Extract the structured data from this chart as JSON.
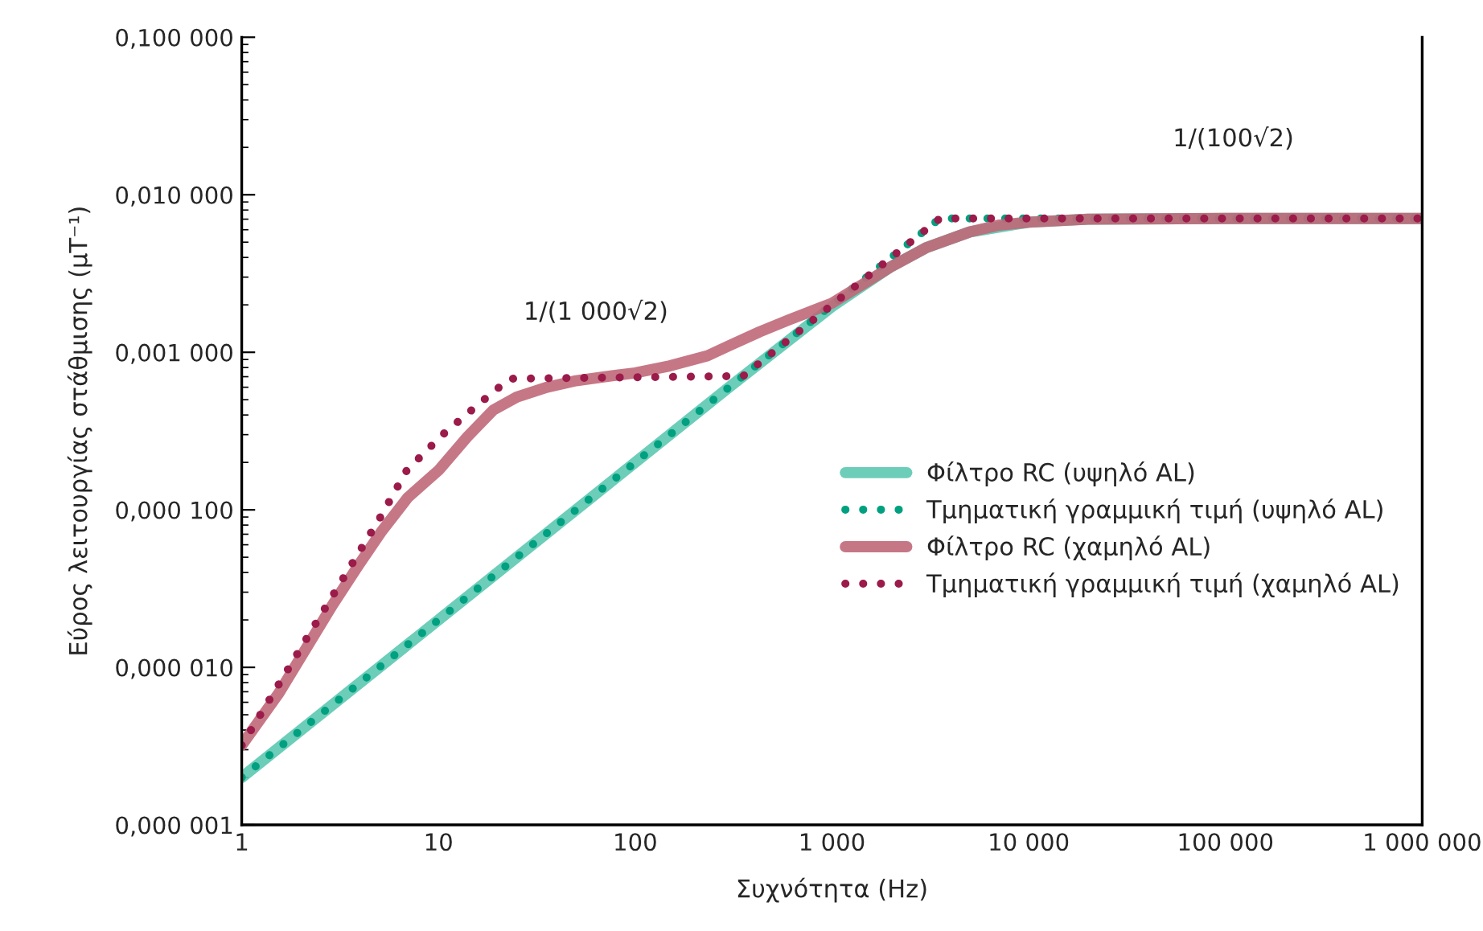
{
  "chart_data": {
    "type": "line",
    "xlabel": "Συχνότητα (Hz)",
    "ylabel": "Εύρος λειτουργίας στάθμισης (μT⁻¹)",
    "log": "xy",
    "grid": false,
    "legend": "center right",
    "marker": "none",
    "xlim": [
      1,
      1000000
    ],
    "ylim": [
      1e-06,
      0.1
    ],
    "xticks": [
      1,
      10,
      100,
      {
        "value": 1000,
        "label": "1 000"
      },
      {
        "value": 10000,
        "label": "10 000"
      },
      {
        "value": 100000,
        "label": "100 000"
      },
      {
        "value": 1000000,
        "label": "1 000 000"
      }
    ],
    "yticks": [
      {
        "value": 1e-06,
        "label": "0,000 001"
      },
      {
        "value": 1e-05,
        "label": "0,000 010"
      },
      {
        "value": 0.0001,
        "label": "0,000 100"
      },
      {
        "value": 0.001,
        "label": "0,001 000"
      },
      {
        "value": 0.01,
        "label": "0,010 000"
      },
      {
        "value": 0.1,
        "label": "0,100 000"
      }
    ],
    "series": [
      {
        "name": "Φίλτρο RC (υψηλό AL)",
        "color": "#5cc8b0",
        "line_style": "solid",
        "x": [
          1,
          10,
          100,
          300,
          1000,
          2000,
          3000,
          5000,
          10000,
          20000,
          100000,
          1000000
        ],
        "values": [
          2e-06,
          2e-05,
          0.0002,
          0.0006,
          0.00195,
          0.0035,
          0.0046,
          0.0058,
          0.0067,
          0.007,
          0.00707,
          0.00707
        ]
      },
      {
        "name": "Τμηματική γραμμική τιμή (υψηλό AL)",
        "color": "#00a080",
        "line_style": "dotted",
        "x": [
          1,
          3536,
          1000000
        ],
        "values": [
          2e-06,
          0.00707,
          0.00707
        ]
      },
      {
        "name": "Φίλτρο RC (χαμηλό AL)",
        "color": "#c06878",
        "line_style": "solid",
        "x": [
          1,
          1.55,
          2.9,
          3.9,
          5.1,
          7,
          10.1,
          14,
          19,
          25,
          35.6,
          50,
          70,
          100,
          150,
          233,
          300,
          430,
          600,
          1000,
          1500,
          2000,
          3000,
          5000,
          7000,
          10000,
          20000,
          100000,
          1000000
        ],
        "values": [
          3.2e-06,
          6.9e-06,
          2.5e-05,
          4.4e-05,
          7.2e-05,
          0.00012,
          0.00018,
          0.00029,
          0.00043,
          0.00052,
          0.0006,
          0.00066,
          0.0007,
          0.00074,
          0.00082,
          0.00095,
          0.0011,
          0.00135,
          0.0016,
          0.00205,
          0.0028,
          0.0035,
          0.0046,
          0.0058,
          0.0064,
          0.0067,
          0.007,
          0.00707,
          0.00707
        ]
      },
      {
        "name": "Τμηματική γραμμική τιμή (χαμηλό AL)",
        "color": "#9b1b4a",
        "line_style": "dotted",
        "x": [
          1,
          5.1,
          6.9,
          10.5,
          16.7,
          23,
          354,
          3536,
          1000000
        ],
        "values": [
          3.2e-06,
          9.1e-05,
          0.000178,
          0.0003,
          0.00049,
          0.00068,
          0.000707,
          0.00707,
          0.00707
        ]
      }
    ],
    "annotations": [
      "1/(1 000√2)",
      "1/(100√2)"
    ]
  }
}
